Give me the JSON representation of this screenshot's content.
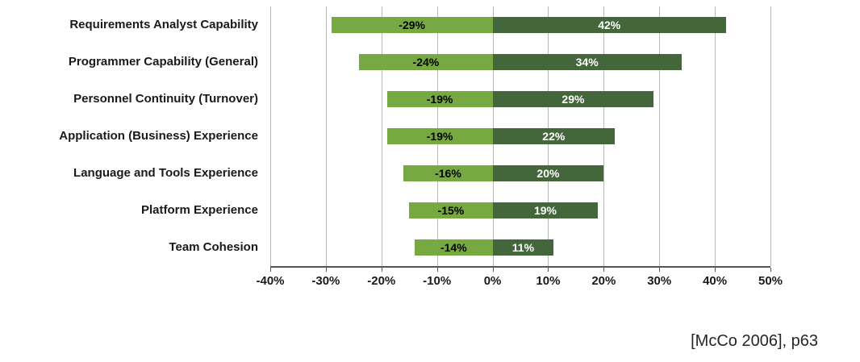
{
  "chart_data": {
    "type": "bar",
    "orientation": "horizontal",
    "title": "",
    "xlabel": "",
    "ylabel": "",
    "categories": [
      "Requirements Analyst Capability",
      "Programmer Capability (General)",
      "Personnel Continuity (Turnover)",
      "Application (Business) Experience",
      "Language and Tools Experience",
      "Platform Experience",
      "Team Cohesion"
    ],
    "series": [
      {
        "name": "negative-impact",
        "values": [
          -29,
          -24,
          -19,
          -19,
          -16,
          -15,
          -14
        ],
        "color": "#77a942",
        "label_color": "#000000"
      },
      {
        "name": "positive-impact",
        "values": [
          42,
          34,
          29,
          22,
          20,
          19,
          11
        ],
        "color": "#44663b",
        "label_color": "#ffffff"
      }
    ],
    "xlim": [
      -40,
      50
    ],
    "tick_values": [
      -40,
      -30,
      -20,
      -10,
      0,
      10,
      20,
      30,
      40,
      50
    ],
    "x_ticks": [
      "-40%",
      "-30%",
      "-20%",
      "-10%",
      "0%",
      "10%",
      "20%",
      "30%",
      "40%",
      "50%"
    ],
    "grid": true,
    "legend_position": "none",
    "value_suffix": "%"
  },
  "citation": "[McCo 2006], p63"
}
